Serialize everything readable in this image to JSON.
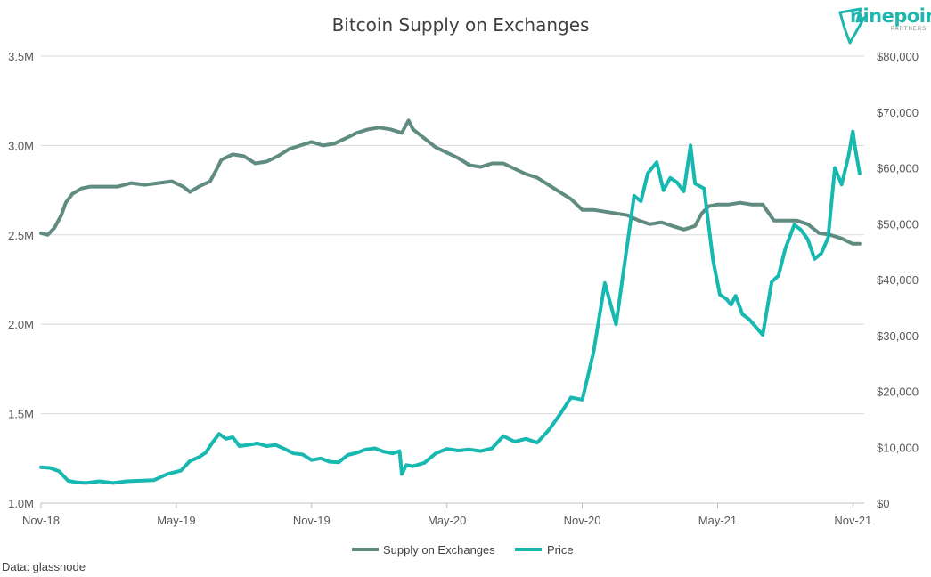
{
  "source_note": "Data: glassnode",
  "logo": {
    "word": "ninepoint",
    "sub": "PARTNERS",
    "color": "#1fb6ad"
  },
  "chart_data": {
    "type": "line",
    "title": "Bitcoin Supply on Exchanges",
    "x_ticks": [
      "Nov-18",
      "May-19",
      "Nov-19",
      "May-20",
      "Nov-20",
      "May-21",
      "Nov-21"
    ],
    "x_range_months": [
      0,
      36.5
    ],
    "y_left": {
      "ticks": [
        "1.0M",
        "1.5M",
        "2.0M",
        "2.5M",
        "3.0M",
        "3.5M"
      ],
      "range": [
        1000000,
        3500000
      ]
    },
    "y_right": {
      "ticks": [
        "$0",
        "$10,000",
        "$20,000",
        "$30,000",
        "$40,000",
        "$50,000",
        "$60,000",
        "$70,000",
        "$80,000"
      ],
      "range": [
        0,
        80000
      ]
    },
    "grid": true,
    "legend_position": "bottom",
    "series": [
      {
        "name": "Supply on Exchanges",
        "axis": "left",
        "color": "#5f8b80",
        "x": [
          0,
          0.3,
          0.6,
          0.9,
          1.1,
          1.4,
          1.8,
          2.2,
          2.8,
          3.4,
          4.0,
          4.6,
          5.2,
          5.8,
          6.3,
          6.6,
          7.0,
          7.5,
          7.8,
          8.0,
          8.5,
          9.0,
          9.5,
          10.0,
          10.5,
          11.0,
          11.5,
          12.0,
          12.5,
          13.0,
          13.5,
          14.0,
          14.5,
          15.0,
          15.5,
          16.0,
          16.3,
          16.5,
          17.0,
          17.5,
          18.0,
          18.5,
          19.0,
          19.5,
          20.0,
          20.5,
          21.0,
          21.5,
          22.0,
          22.5,
          23.0,
          23.5,
          24.0,
          24.5,
          25.0,
          25.5,
          26.0,
          26.5,
          27.0,
          27.5,
          28.0,
          28.5,
          29.0,
          29.3,
          29.6,
          30.0,
          30.5,
          31.0,
          31.5,
          32.0,
          32.5,
          33.0,
          33.5,
          34.0,
          34.5,
          35.0,
          35.5,
          36.0,
          36.3
        ],
        "values": [
          2510000,
          2500000,
          2540000,
          2610000,
          2680000,
          2730000,
          2760000,
          2770000,
          2770000,
          2770000,
          2790000,
          2780000,
          2790000,
          2800000,
          2770000,
          2740000,
          2770000,
          2800000,
          2870000,
          2920000,
          2950000,
          2940000,
          2900000,
          2910000,
          2940000,
          2980000,
          3000000,
          3020000,
          3000000,
          3010000,
          3040000,
          3070000,
          3090000,
          3100000,
          3090000,
          3070000,
          3140000,
          3090000,
          3040000,
          2990000,
          2960000,
          2930000,
          2890000,
          2880000,
          2900000,
          2900000,
          2870000,
          2840000,
          2820000,
          2780000,
          2740000,
          2700000,
          2640000,
          2640000,
          2630000,
          2620000,
          2610000,
          2580000,
          2560000,
          2570000,
          2550000,
          2530000,
          2550000,
          2620000,
          2660000,
          2670000,
          2670000,
          2680000,
          2670000,
          2670000,
          2580000,
          2580000,
          2580000,
          2560000,
          2510000,
          2500000,
          2480000,
          2450000,
          2450000
        ]
      },
      {
        "name": "Price",
        "axis": "right",
        "color": "#17b8b0",
        "x": [
          0,
          0.4,
          0.8,
          1.2,
          1.6,
          2.0,
          2.6,
          3.2,
          3.8,
          4.4,
          5.0,
          5.6,
          6.2,
          6.6,
          7.0,
          7.3,
          7.6,
          7.9,
          8.2,
          8.5,
          8.8,
          9.2,
          9.6,
          10.0,
          10.4,
          10.8,
          11.2,
          11.6,
          12.0,
          12.4,
          12.8,
          13.2,
          13.6,
          14.0,
          14.4,
          14.8,
          15.2,
          15.6,
          15.9,
          16.0,
          16.2,
          16.5,
          17.0,
          17.5,
          18.0,
          18.5,
          19.0,
          19.5,
          20.0,
          20.5,
          21.0,
          21.5,
          22.0,
          22.5,
          23.0,
          23.5,
          24.0,
          24.5,
          25.0,
          25.5,
          26.0,
          26.3,
          26.6,
          26.9,
          27.3,
          27.6,
          27.9,
          28.2,
          28.5,
          28.8,
          29.0,
          29.4,
          29.8,
          30.1,
          30.4,
          30.6,
          30.8,
          31.1,
          31.4,
          31.7,
          32.0,
          32.4,
          32.7,
          33.0,
          33.4,
          33.7,
          34.0,
          34.3,
          34.6,
          34.9,
          35.2,
          35.5,
          35.8,
          36.0,
          36.1,
          36.3
        ],
        "values": [
          6400,
          6300,
          5700,
          4000,
          3700,
          3600,
          3900,
          3600,
          3900,
          4000,
          4100,
          5200,
          5800,
          7500,
          8200,
          9000,
          10800,
          12400,
          11500,
          11800,
          10200,
          10400,
          10700,
          10200,
          10400,
          9700,
          8900,
          8700,
          7700,
          8000,
          7400,
          7300,
          8600,
          9000,
          9600,
          9800,
          9200,
          8900,
          9300,
          5200,
          6800,
          6600,
          7200,
          8900,
          9700,
          9400,
          9600,
          9300,
          9800,
          12000,
          11000,
          11500,
          10800,
          13000,
          15800,
          18900,
          18500,
          27000,
          39400,
          32000,
          46400,
          55000,
          54000,
          59000,
          61000,
          56000,
          58200,
          57400,
          55800,
          64000,
          57200,
          56300,
          43400,
          37300,
          36500,
          35500,
          37100,
          33800,
          32900,
          31500,
          30100,
          39600,
          40700,
          45500,
          49800,
          48900,
          47200,
          43700,
          44700,
          47500,
          60000,
          57000,
          62000,
          66500,
          63500,
          59000
        ]
      }
    ]
  }
}
